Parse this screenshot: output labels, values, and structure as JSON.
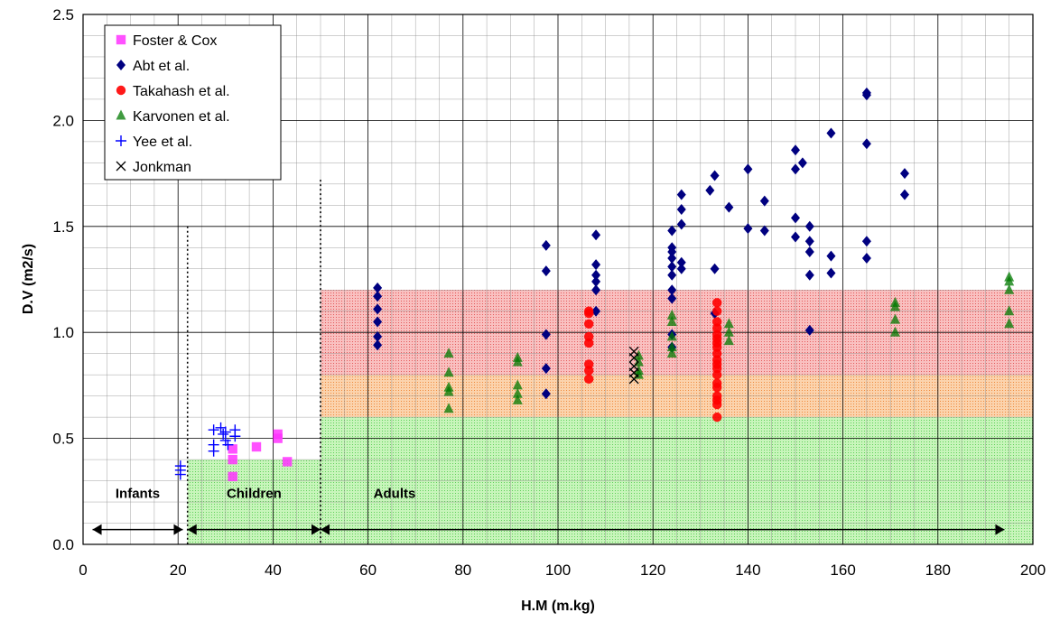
{
  "chart_data": {
    "type": "scatter",
    "title": "",
    "xlabel": "H.M (m.kg)",
    "ylabel": "D.V (m2/s)",
    "xlim": [
      0,
      200
    ],
    "ylim": [
      0,
      2.5
    ],
    "x_ticks": [
      "0",
      "20",
      "40",
      "60",
      "80",
      "100",
      "120",
      "140",
      "160",
      "180",
      "200"
    ],
    "y_ticks": [
      "0.0",
      "0.5",
      "1.0",
      "1.5",
      "2.0",
      "2.5"
    ],
    "grid": "major and minor",
    "legend_position": "top-left",
    "zones": [
      {
        "label": "Infants",
        "x_start": 2,
        "x_end": 21
      },
      {
        "label": "Children",
        "x_start": 22,
        "x_end": 50
      },
      {
        "label": "Adults",
        "x_start": 50,
        "x_end": 194
      }
    ],
    "zone_divider_x": [
      22,
      50
    ],
    "shaded_regions": [
      {
        "x": [
          22,
          50
        ],
        "y": [
          0,
          0.4
        ],
        "color": "#b6f0a8"
      },
      {
        "x": [
          50,
          200
        ],
        "y": [
          0,
          0.6
        ],
        "color": "#b6f0a8"
      },
      {
        "x": [
          50,
          200
        ],
        "y": [
          0.6,
          0.8
        ],
        "color": "#f9c89a"
      },
      {
        "x": [
          50,
          200
        ],
        "y": [
          0.8,
          1.2
        ],
        "color": "#f7a9a9"
      }
    ],
    "series": [
      {
        "name": "Foster & Cox",
        "marker": "square",
        "color": "#ff33ff",
        "x": [
          31.5,
          31.5,
          31.5,
          36.5,
          41,
          41,
          43
        ],
        "y": [
          0.45,
          0.4,
          0.32,
          0.46,
          0.52,
          0.5,
          0.39
        ]
      },
      {
        "name": "Abt et al.",
        "marker": "diamond",
        "color": "#000080",
        "x": [
          62,
          62,
          62,
          62,
          62,
          62,
          97.5,
          97.5,
          97.5,
          97.5,
          97.5,
          108,
          108,
          108,
          108,
          108,
          108,
          124,
          124,
          124,
          124,
          124,
          124,
          124,
          124,
          124,
          124,
          126,
          126,
          126,
          126,
          126,
          132,
          133,
          133,
          133,
          136,
          140,
          140,
          143.5,
          143.5,
          150,
          150,
          150,
          150,
          151.5,
          153,
          153,
          153,
          153,
          153,
          157.5,
          157.5,
          157.5,
          165,
          165,
          165,
          165,
          165,
          173,
          173
        ],
        "y": [
          1.21,
          1.17,
          1.11,
          1.05,
          0.98,
          0.94,
          1.41,
          1.29,
          0.99,
          0.83,
          0.71,
          1.46,
          1.32,
          1.27,
          1.24,
          1.2,
          1.1,
          1.48,
          1.4,
          1.38,
          1.35,
          1.31,
          1.27,
          1.2,
          1.16,
          0.99,
          0.93,
          1.65,
          1.58,
          1.51,
          1.33,
          1.3,
          1.67,
          1.74,
          1.3,
          1.09,
          1.59,
          1.77,
          1.49,
          1.62,
          1.48,
          1.86,
          1.77,
          1.54,
          1.45,
          1.8,
          1.5,
          1.43,
          1.38,
          1.27,
          1.01,
          1.94,
          1.36,
          1.28,
          2.13,
          2.12,
          1.89,
          1.43,
          1.35,
          1.75,
          1.65
        ]
      },
      {
        "name": "Takahash et al.",
        "marker": "circle",
        "color": "#ff0000",
        "x": [
          106.5,
          106.5,
          106.5,
          106.5,
          106.5,
          106.5,
          106.5,
          106.5,
          133.5,
          133.5,
          133.5,
          133.5,
          133.5,
          133.5,
          133.5,
          133.5,
          133.5,
          133.5,
          133.5,
          133.5,
          133.5,
          133.5,
          133.5,
          133.5,
          133.5,
          133.5,
          133.5
        ],
        "y": [
          1.1,
          1.09,
          1.04,
          0.98,
          0.95,
          0.85,
          0.82,
          0.78,
          1.14,
          1.1,
          1.05,
          1.02,
          0.99,
          0.97,
          0.95,
          0.93,
          0.9,
          0.87,
          0.85,
          0.83,
          0.8,
          0.76,
          0.74,
          0.7,
          0.68,
          0.66,
          0.6
        ]
      },
      {
        "name": "Karvonen et al.",
        "marker": "triangle",
        "color": "#007a00",
        "x": [
          77,
          77,
          77,
          77,
          77,
          91.5,
          91.5,
          91.5,
          91.5,
          91.5,
          117,
          117,
          117,
          117,
          124,
          124,
          124,
          124,
          124,
          136,
          136,
          136,
          171,
          171,
          171,
          171,
          195,
          195,
          195,
          195,
          195
        ],
        "y": [
          0.9,
          0.81,
          0.74,
          0.72,
          0.64,
          0.88,
          0.86,
          0.75,
          0.71,
          0.68,
          0.89,
          0.86,
          0.82,
          0.8,
          1.08,
          1.05,
          0.98,
          0.93,
          0.9,
          1.04,
          1.0,
          0.96,
          1.14,
          1.12,
          1.06,
          1.0,
          1.26,
          1.24,
          1.2,
          1.1,
          1.04
        ]
      },
      {
        "name": "Yee et al.",
        "marker": "plus",
        "color": "#0000ff",
        "x": [
          20.5,
          20.5,
          20.5,
          27.5,
          27.5,
          27.5,
          29,
          29.5,
          30,
          30,
          30.5,
          32,
          32
        ],
        "y": [
          0.37,
          0.35,
          0.33,
          0.54,
          0.47,
          0.44,
          0.55,
          0.52,
          0.53,
          0.49,
          0.47,
          0.54,
          0.51
        ]
      },
      {
        "name": "Jonkman",
        "marker": "cross",
        "color": "#000000",
        "x": [
          116,
          116,
          116,
          116,
          116
        ],
        "y": [
          0.91,
          0.88,
          0.84,
          0.81,
          0.78
        ]
      }
    ]
  }
}
